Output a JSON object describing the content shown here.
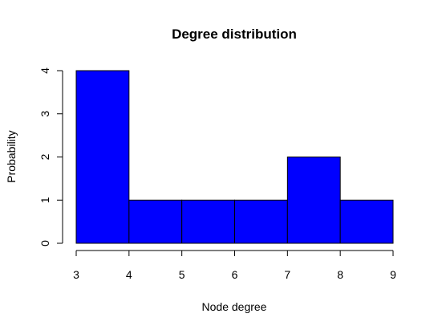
{
  "chart_data": {
    "type": "bar",
    "subtype": "histogram",
    "title": "Degree distribution",
    "xlabel": "Node degree",
    "ylabel": "Probability",
    "bins": [
      {
        "from": 3,
        "to": 4,
        "value": 4
      },
      {
        "from": 4,
        "to": 5,
        "value": 1
      },
      {
        "from": 5,
        "to": 6,
        "value": 1
      },
      {
        "from": 6,
        "to": 7,
        "value": 1
      },
      {
        "from": 7,
        "to": 8,
        "value": 2
      },
      {
        "from": 8,
        "to": 9,
        "value": 1
      }
    ],
    "xlim": [
      3,
      9
    ],
    "ylim": [
      0,
      4
    ],
    "x_ticks": [
      "3",
      "4",
      "5",
      "6",
      "7",
      "8",
      "9"
    ],
    "y_ticks": [
      "0",
      "1",
      "2",
      "3",
      "4"
    ],
    "grid": false,
    "legend": "none",
    "bar_color": "#0000ff",
    "bar_edge_color": "#000000"
  }
}
